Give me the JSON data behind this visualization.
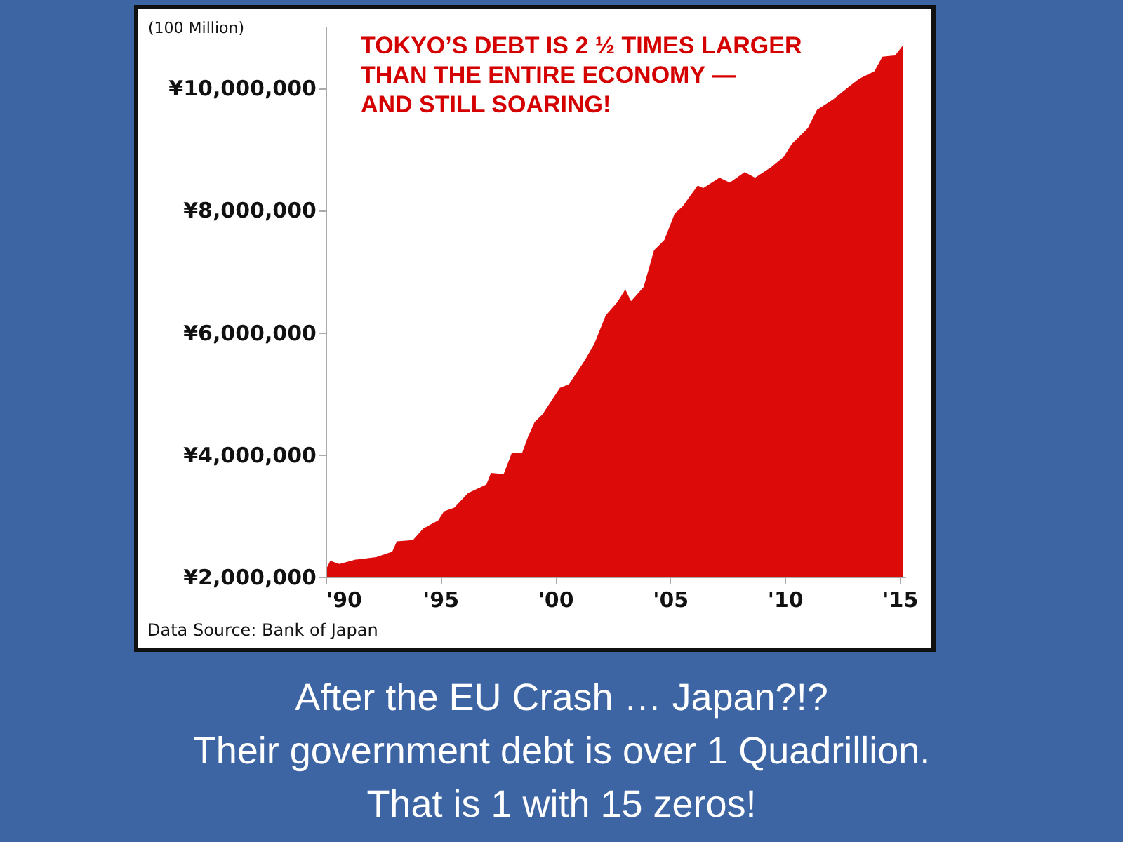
{
  "chart_data": {
    "type": "area",
    "ylabel": "(100 Million)",
    "x": [
      1990,
      1990.2,
      1990.6,
      1991.3,
      1992.2,
      1992.9,
      1993.1,
      1993.8,
      1994.25,
      1994.9,
      1995.15,
      1995.6,
      1996.2,
      1997.0,
      1997.2,
      1997.75,
      1998.1,
      1998.55,
      1998.8,
      1999.1,
      1999.45,
      2000.2,
      2000.6,
      2001.3,
      2001.7,
      2002.2,
      2002.7,
      2003.05,
      2003.3,
      2003.85,
      2004.3,
      2004.75,
      2005.2,
      2005.55,
      2006.2,
      2006.45,
      2007.15,
      2007.6,
      2008.25,
      2008.7,
      2009.4,
      2009.95,
      2010.3,
      2011.0,
      2011.4,
      2012.1,
      2012.8,
      2013.25,
      2013.9,
      2014.25,
      2014.8,
      2015.15
    ],
    "series": [
      {
        "color": "#dd0a0a",
        "values": [
          2110000,
          2260000,
          2210000,
          2280000,
          2320000,
          2410000,
          2580000,
          2600000,
          2790000,
          2920000,
          3070000,
          3130000,
          3370000,
          3510000,
          3700000,
          3680000,
          4020000,
          4020000,
          4280000,
          4530000,
          4660000,
          5090000,
          5150000,
          5550000,
          5810000,
          6280000,
          6490000,
          6700000,
          6510000,
          6740000,
          7340000,
          7510000,
          7940000,
          8060000,
          8400000,
          8360000,
          8530000,
          8450000,
          8620000,
          8530000,
          8700000,
          8870000,
          9080000,
          9340000,
          9640000,
          9810000,
          10020000,
          10150000,
          10270000,
          10510000,
          10530000,
          10700000
        ]
      }
    ],
    "xlim": [
      1990,
      2015.25
    ],
    "xticks": [
      {
        "value": 1990,
        "label": "'90"
      },
      {
        "value": 1995,
        "label": "'95"
      },
      {
        "value": 2000,
        "label": "'00"
      },
      {
        "value": 2005,
        "label": "'05"
      },
      {
        "value": 2010,
        "label": "'10"
      },
      {
        "value": 2015,
        "label": "'15"
      }
    ],
    "ylim": [
      2000000,
      11000000
    ],
    "yticks": [
      {
        "value": 2000000,
        "label": "¥2,000,000"
      },
      {
        "value": 4000000,
        "label": "¥4,000,000"
      },
      {
        "value": 6000000,
        "label": "¥6,000,000"
      },
      {
        "value": 8000000,
        "label": "¥8,000,000"
      },
      {
        "value": 10000000,
        "label": "¥10,000,000"
      }
    ],
    "grid": false,
    "legend": false,
    "annotations": [
      "TOKYO’S DEBT IS 2 ½ TIMES LARGER\nTHAN THE ENTIRE ECONOMY —\nAND STILL SOARING!",
      "Data Source:  Bank of Japan",
      "After the EU Crash … Japan?!?",
      "Their government debt is over 1 Quadrillion.",
      "That is 1 with 15 zeros!"
    ]
  }
}
